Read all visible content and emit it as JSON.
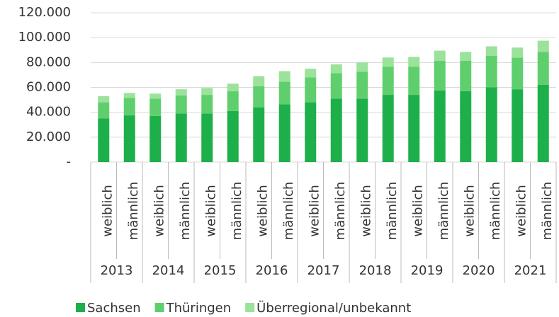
{
  "chart_data": {
    "type": "stacked_bar",
    "categories": [
      "weiblich",
      "männlich",
      "weiblich",
      "männlich",
      "weiblich",
      "männlich",
      "weiblich",
      "männlich",
      "weiblich",
      "männlich",
      "weiblich",
      "männlich",
      "weiblich",
      "männlich",
      "weiblich",
      "männlich",
      "weiblich",
      "männlich"
    ],
    "groups": [
      "2013",
      "2014",
      "2015",
      "2016",
      "2017",
      "2018",
      "2019",
      "2020",
      "2021"
    ],
    "series": [
      {
        "name": "Sachsen",
        "color": "#1db04a",
        "values": [
          35000,
          37500,
          37000,
          39000,
          39000,
          41000,
          44000,
          46500,
          48000,
          51000,
          51000,
          54000,
          54000,
          57500,
          57000,
          60000,
          58500,
          62000
        ]
      },
      {
        "name": "Thüringen",
        "color": "#5fcf6e",
        "values": [
          13000,
          14000,
          14000,
          14500,
          15000,
          16000,
          17000,
          18000,
          20000,
          20500,
          21500,
          22500,
          22500,
          24000,
          24500,
          25500,
          25500,
          26500
        ]
      },
      {
        "name": "Überregional/unbekannt",
        "color": "#9be29a",
        "values": [
          5000,
          4000,
          4000,
          5000,
          5500,
          6000,
          8000,
          8500,
          7000,
          7000,
          7500,
          7500,
          8000,
          8000,
          7000,
          7500,
          8000,
          9000
        ]
      }
    ],
    "ylim": [
      0,
      120000
    ],
    "yticks": [
      {
        "value": 0,
        "label": "-"
      },
      {
        "value": 20000,
        "label": "20.000"
      },
      {
        "value": 40000,
        "label": "40.000"
      },
      {
        "value": 60000,
        "label": "60.000"
      },
      {
        "value": 80000,
        "label": "80.000"
      },
      {
        "value": 100000,
        "label": "100.000"
      },
      {
        "value": 120000,
        "label": "120.000"
      }
    ],
    "grid": true,
    "legend": "bottom"
  }
}
